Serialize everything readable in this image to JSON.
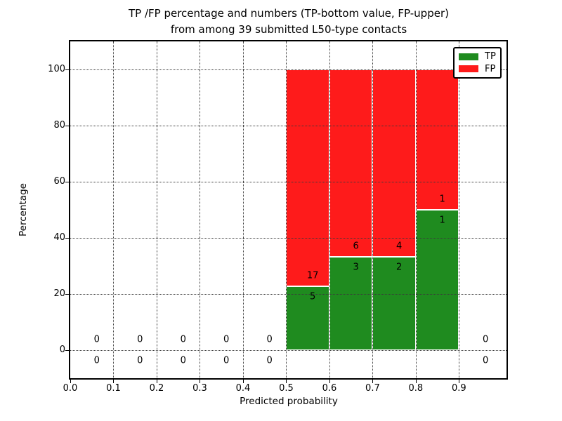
{
  "figure": {
    "title_line1": "TP /FP percentage and numbers (TP-bottom value, FP-upper)",
    "title_line2": "from among 39 submitted L50-type contacts"
  },
  "chart_data": {
    "type": "bar",
    "stacked": true,
    "title": "TP /FP percentage and numbers (TP-bottom value, FP-upper)\nfrom among 39 submitted L50-type contacts",
    "xlabel": "Predicted probability",
    "ylabel": "Percentage",
    "xlim": [
      0.0,
      1.01
    ],
    "ylim": [
      -10,
      110
    ],
    "xtick_labels": [
      "0.0",
      "0.1",
      "0.2",
      "0.3",
      "0.4",
      "0.5",
      "0.6",
      "0.7",
      "0.8",
      "0.9"
    ],
    "ytick_labels": [
      "0",
      "20",
      "40",
      "60",
      "80",
      "100"
    ],
    "ytick_values": [
      0,
      20,
      40,
      60,
      80,
      100
    ],
    "grid": true,
    "annotation_rule": "TP count below green/red boundary, FP count above it",
    "total_contacts": 39,
    "series": [
      {
        "name": "TP",
        "color": "#1f8b1f"
      },
      {
        "name": "FP",
        "color": "#fe1b1b"
      }
    ],
    "bins": [
      {
        "range": [
          0.0,
          0.1
        ],
        "tp_count": 0,
        "fp_count": 0,
        "tp_pct": 0,
        "fp_pct": 0
      },
      {
        "range": [
          0.1,
          0.2
        ],
        "tp_count": 0,
        "fp_count": 0,
        "tp_pct": 0,
        "fp_pct": 0
      },
      {
        "range": [
          0.2,
          0.3
        ],
        "tp_count": 0,
        "fp_count": 0,
        "tp_pct": 0,
        "fp_pct": 0
      },
      {
        "range": [
          0.3,
          0.4
        ],
        "tp_count": 0,
        "fp_count": 0,
        "tp_pct": 0,
        "fp_pct": 0
      },
      {
        "range": [
          0.4,
          0.5
        ],
        "tp_count": 0,
        "fp_count": 0,
        "tp_pct": 0,
        "fp_pct": 0
      },
      {
        "range": [
          0.5,
          0.6
        ],
        "tp_count": 5,
        "fp_count": 17,
        "tp_pct": 22.73,
        "fp_pct": 77.27
      },
      {
        "range": [
          0.6,
          0.7
        ],
        "tp_count": 3,
        "fp_count": 6,
        "tp_pct": 33.33,
        "fp_pct": 66.67
      },
      {
        "range": [
          0.7,
          0.8
        ],
        "tp_count": 2,
        "fp_count": 4,
        "tp_pct": 33.33,
        "fp_pct": 66.67
      },
      {
        "range": [
          0.8,
          0.9
        ],
        "tp_count": 1,
        "fp_count": 1,
        "tp_pct": 50.0,
        "fp_pct": 50.0
      },
      {
        "range": [
          0.9,
          1.0
        ],
        "tp_count": 0,
        "fp_count": 0,
        "tp_pct": 0,
        "fp_pct": 0
      }
    ],
    "legend": {
      "position": "upper right",
      "entries": [
        {
          "label": "TP",
          "color": "#1f8b1f"
        },
        {
          "label": "FP",
          "color": "#fe1b1b"
        }
      ]
    }
  }
}
